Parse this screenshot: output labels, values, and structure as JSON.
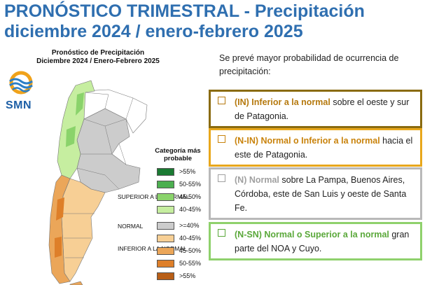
{
  "header": {
    "title_line1": "PRONÓSTICO TRIMESTRAL - Precipitación",
    "title_line2": "diciembre 2024 / enero-febrero 2025"
  },
  "map": {
    "title_line1": "Pronóstico de Precipitación",
    "title_line2": "Diciembre 2024 / Enero-Febrero 2025",
    "logo_text": "SMN"
  },
  "legend": {
    "title": "Categoría más probable",
    "groups": {
      "superior": "SUPERIOR A LA NORMAL",
      "normal": "NORMAL",
      "inferior": "INFERIOR A LA NORMAL"
    },
    "items": [
      {
        "label": ">55%",
        "color": "#1a7a32"
      },
      {
        "label": "50-55%",
        "color": "#4caf50"
      },
      {
        "label": "45-50%",
        "color": "#8ad36b"
      },
      {
        "label": "40-45%",
        "color": "#c6eea0"
      },
      {
        "label": ">=40%",
        "color": "#cccccc"
      },
      {
        "label": "40-45%",
        "color": "#f7cf95"
      },
      {
        "label": "45-50%",
        "color": "#eba659"
      },
      {
        "label": "50-55%",
        "color": "#de7f29"
      },
      {
        "label": ">55%",
        "color": "#b85e16"
      }
    ]
  },
  "forecast": {
    "intro": "Se prevé mayor probabilidad de ocurrencia de precipitación:",
    "boxes": [
      {
        "category": "(IN) Inferior a la normal",
        "text": " sobre el oeste y sur de Patagonia.",
        "border": "#8a6b10",
        "highlight": "#b5790e"
      },
      {
        "category": "(N-IN) Normal o Inferior a la normal",
        "text": " hacia el este de Patagonia.",
        "border": "#e8a71c",
        "highlight": "#c9830c"
      },
      {
        "category": "(N) Normal",
        "text": " sobre La Pampa, Buenos Aires, Córdoba, este de San Luis y oeste de Santa Fe.",
        "border": "#b9b9b9",
        "highlight": "#a0a0a0"
      },
      {
        "category": "(N-SN) Normal o Superior a la normal",
        "text": " gran parte del NOA y Cuyo.",
        "border": "#8fd16c",
        "highlight": "#5aa83a"
      }
    ]
  }
}
